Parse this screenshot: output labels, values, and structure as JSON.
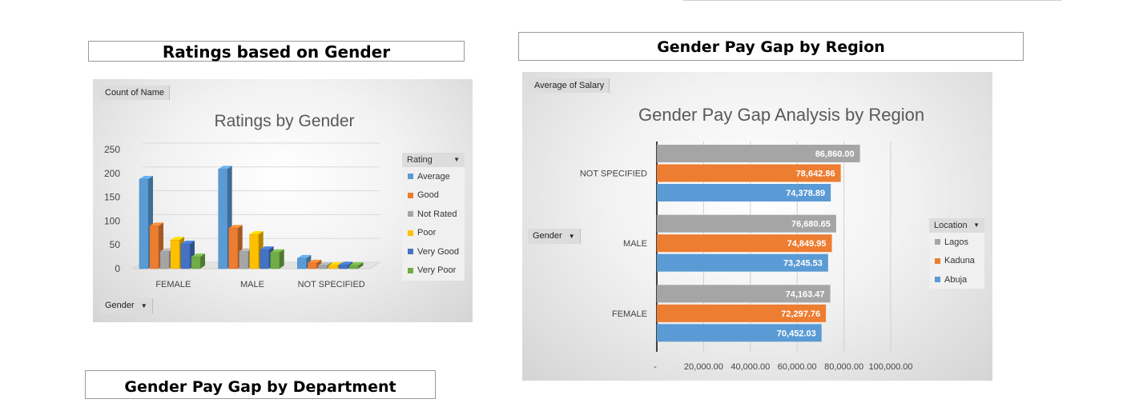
{
  "section_titles": {
    "ratings": "Ratings based on Gender",
    "pay_gap_region": "Gender Pay Gap by Region",
    "pay_gap_department": "Gender Pay Gap by Department"
  },
  "chart_data": [
    {
      "type": "bar",
      "variant": "3d-clustered-column",
      "title": "Ratings by Gender",
      "value_field_button": "Count of Name",
      "axis_field_button": "Gender",
      "legend_title": "Rating",
      "legend_position": "right",
      "categories": [
        "FEMALE",
        "MALE",
        "NOT SPECIFIED"
      ],
      "ylim": [
        0,
        250
      ],
      "yticks": [
        "0",
        "50",
        "100",
        "150",
        "200",
        "250"
      ],
      "grid": true,
      "series": [
        {
          "name": "Average",
          "color": "#5b9bd5",
          "values": [
            188,
            209,
            22
          ]
        },
        {
          "name": "Good",
          "color": "#ed7d31",
          "values": [
            90,
            85,
            12
          ]
        },
        {
          "name": "Not Rated",
          "color": "#a5a5a5",
          "values": [
            36,
            36,
            7
          ]
        },
        {
          "name": "Poor",
          "color": "#ffc000",
          "values": [
            60,
            72,
            7
          ]
        },
        {
          "name": "Very Good",
          "color": "#4472c4",
          "values": [
            52,
            40,
            8
          ]
        },
        {
          "name": "Very Poor",
          "color": "#70ad47",
          "values": [
            25,
            34,
            7
          ]
        }
      ]
    },
    {
      "type": "bar",
      "variant": "clustered-horizontal-bar",
      "title": "Gender Pay Gap Analysis by Region",
      "value_field_button": "Average of Salary",
      "axis_field_button": "Gender",
      "legend_title": "Location",
      "legend_position": "right",
      "categories": [
        "NOT SPECIFIED",
        "MALE",
        "FEMALE"
      ],
      "xlim": [
        0,
        100000
      ],
      "xticks": [
        "-",
        "20,000.00",
        "40,000.00",
        "60,000.00",
        "80,000.00",
        "100,000.00"
      ],
      "grid": true,
      "series": [
        {
          "name": "Lagos",
          "color": "#a5a5a5",
          "values": [
            86860.0,
            76680.65,
            74163.47
          ],
          "labels": [
            "86,860.00",
            "76,680.65",
            "74,163.47"
          ]
        },
        {
          "name": "Kaduna",
          "color": "#ed7d31",
          "values": [
            78642.86,
            74849.95,
            72297.76
          ],
          "labels": [
            "78,642.86",
            "74,849.95",
            "72,297.76"
          ]
        },
        {
          "name": "Abuja",
          "color": "#5b9bd5",
          "values": [
            74378.89,
            73245.53,
            70452.03
          ],
          "labels": [
            "74,378.89",
            "73,245.53",
            "70,452.03"
          ]
        }
      ]
    }
  ]
}
